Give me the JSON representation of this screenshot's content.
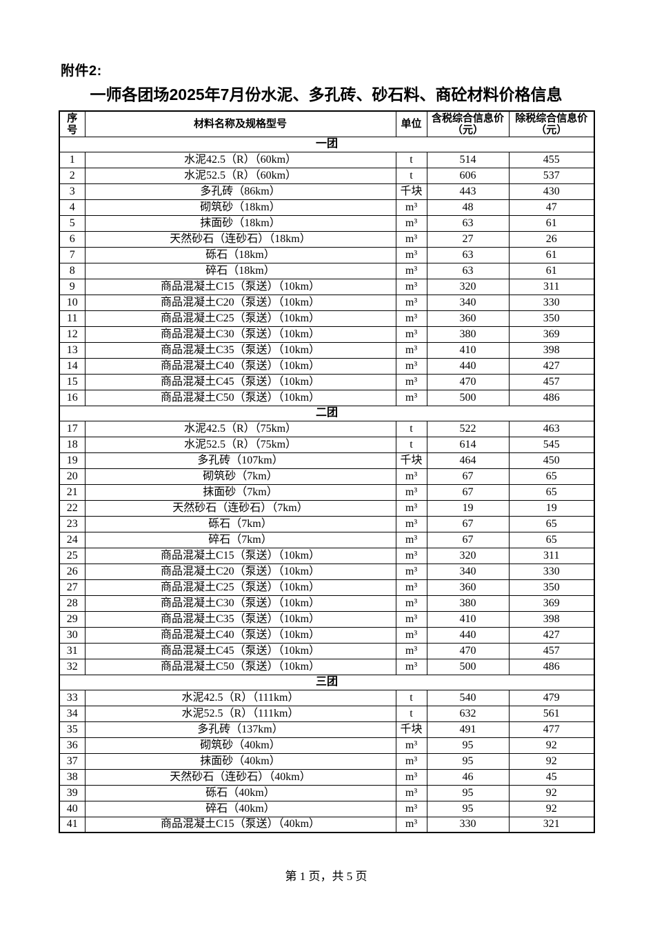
{
  "page": {
    "attachment_label": "附件2:",
    "title": "一师各团场2025年7月份水泥、多孔砖、砂石料、商砼材料价格信息",
    "footer": "第 1 页，共 5 页"
  },
  "table": {
    "headers": {
      "no": "序\n号",
      "name": "材料名称及规格型号",
      "unit": "单位",
      "tax_incl": "含税综合信息价（元）",
      "tax_excl": "除税综合信息价（元）"
    },
    "sections": [
      {
        "name": "一团",
        "rows": [
          {
            "no": "1",
            "name": "水泥42.5（R）（60km）",
            "unit": "t",
            "tax_incl": "514",
            "tax_excl": "455"
          },
          {
            "no": "2",
            "name": "水泥52.5（R）（60km）",
            "unit": "t",
            "tax_incl": "606",
            "tax_excl": "537"
          },
          {
            "no": "3",
            "name": "多孔砖（86km）",
            "unit": "千块",
            "tax_incl": "443",
            "tax_excl": "430"
          },
          {
            "no": "4",
            "name": "砌筑砂（18km）",
            "unit": "m³",
            "tax_incl": "48",
            "tax_excl": "47"
          },
          {
            "no": "5",
            "name": "抹面砂（18km）",
            "unit": "m³",
            "tax_incl": "63",
            "tax_excl": "61"
          },
          {
            "no": "6",
            "name": "天然砂石（连砂石）（18km）",
            "unit": "m³",
            "tax_incl": "27",
            "tax_excl": "26"
          },
          {
            "no": "7",
            "name": "砾石（18km）",
            "unit": "m³",
            "tax_incl": "63",
            "tax_excl": "61"
          },
          {
            "no": "8",
            "name": "碎石（18km）",
            "unit": "m³",
            "tax_incl": "63",
            "tax_excl": "61"
          },
          {
            "no": "9",
            "name": "商品混凝土C15（泵送）（10km）",
            "unit": "m³",
            "tax_incl": "320",
            "tax_excl": "311"
          },
          {
            "no": "10",
            "name": "商品混凝土C20（泵送）（10km）",
            "unit": "m³",
            "tax_incl": "340",
            "tax_excl": "330"
          },
          {
            "no": "11",
            "name": "商品混凝土C25（泵送）（10km）",
            "unit": "m³",
            "tax_incl": "360",
            "tax_excl": "350"
          },
          {
            "no": "12",
            "name": "商品混凝土C30（泵送）（10km）",
            "unit": "m³",
            "tax_incl": "380",
            "tax_excl": "369"
          },
          {
            "no": "13",
            "name": "商品混凝土C35（泵送）（10km）",
            "unit": "m³",
            "tax_incl": "410",
            "tax_excl": "398"
          },
          {
            "no": "14",
            "name": "商品混凝土C40（泵送）（10km）",
            "unit": "m³",
            "tax_incl": "440",
            "tax_excl": "427"
          },
          {
            "no": "15",
            "name": "商品混凝土C45（泵送）（10km）",
            "unit": "m³",
            "tax_incl": "470",
            "tax_excl": "457"
          },
          {
            "no": "16",
            "name": "商品混凝土C50（泵送）（10km）",
            "unit": "m³",
            "tax_incl": "500",
            "tax_excl": "486"
          }
        ]
      },
      {
        "name": "二团",
        "rows": [
          {
            "no": "17",
            "name": "水泥42.5（R）（75km）",
            "unit": "t",
            "tax_incl": "522",
            "tax_excl": "463"
          },
          {
            "no": "18",
            "name": "水泥52.5（R）（75km）",
            "unit": "t",
            "tax_incl": "614",
            "tax_excl": "545"
          },
          {
            "no": "19",
            "name": "多孔砖（107km）",
            "unit": "千块",
            "tax_incl": "464",
            "tax_excl": "450"
          },
          {
            "no": "20",
            "name": "砌筑砂（7km）",
            "unit": "m³",
            "tax_incl": "67",
            "tax_excl": "65"
          },
          {
            "no": "21",
            "name": "抹面砂（7km）",
            "unit": "m³",
            "tax_incl": "67",
            "tax_excl": "65"
          },
          {
            "no": "22",
            "name": "天然砂石（连砂石）（7km）",
            "unit": "m³",
            "tax_incl": "19",
            "tax_excl": "19"
          },
          {
            "no": "23",
            "name": "砾石（7km）",
            "unit": "m³",
            "tax_incl": "67",
            "tax_excl": "65"
          },
          {
            "no": "24",
            "name": "碎石（7km）",
            "unit": "m³",
            "tax_incl": "67",
            "tax_excl": "65"
          },
          {
            "no": "25",
            "name": "商品混凝土C15（泵送）（10km）",
            "unit": "m³",
            "tax_incl": "320",
            "tax_excl": "311"
          },
          {
            "no": "26",
            "name": "商品混凝土C20（泵送）（10km）",
            "unit": "m³",
            "tax_incl": "340",
            "tax_excl": "330"
          },
          {
            "no": "27",
            "name": "商品混凝土C25（泵送）（10km）",
            "unit": "m³",
            "tax_incl": "360",
            "tax_excl": "350"
          },
          {
            "no": "28",
            "name": "商品混凝土C30（泵送）（10km）",
            "unit": "m³",
            "tax_incl": "380",
            "tax_excl": "369"
          },
          {
            "no": "29",
            "name": "商品混凝土C35（泵送）（10km）",
            "unit": "m³",
            "tax_incl": "410",
            "tax_excl": "398"
          },
          {
            "no": "30",
            "name": "商品混凝土C40（泵送）（10km）",
            "unit": "m³",
            "tax_incl": "440",
            "tax_excl": "427"
          },
          {
            "no": "31",
            "name": "商品混凝土C45（泵送）（10km）",
            "unit": "m³",
            "tax_incl": "470",
            "tax_excl": "457"
          },
          {
            "no": "32",
            "name": "商品混凝土C50（泵送）（10km）",
            "unit": "m³",
            "tax_incl": "500",
            "tax_excl": "486"
          }
        ]
      },
      {
        "name": "三团",
        "rows": [
          {
            "no": "33",
            "name": "水泥42.5（R）（111km）",
            "unit": "t",
            "tax_incl": "540",
            "tax_excl": "479"
          },
          {
            "no": "34",
            "name": "水泥52.5（R）（111km）",
            "unit": "t",
            "tax_incl": "632",
            "tax_excl": "561"
          },
          {
            "no": "35",
            "name": "多孔砖（137km）",
            "unit": "千块",
            "tax_incl": "491",
            "tax_excl": "477"
          },
          {
            "no": "36",
            "name": "砌筑砂（40km）",
            "unit": "m³",
            "tax_incl": "95",
            "tax_excl": "92"
          },
          {
            "no": "37",
            "name": "抹面砂（40km）",
            "unit": "m³",
            "tax_incl": "95",
            "tax_excl": "92"
          },
          {
            "no": "38",
            "name": "天然砂石（连砂石）（40km）",
            "unit": "m³",
            "tax_incl": "46",
            "tax_excl": "45"
          },
          {
            "no": "39",
            "name": "砾石（40km）",
            "unit": "m³",
            "tax_incl": "95",
            "tax_excl": "92"
          },
          {
            "no": "40",
            "name": "碎石（40km）",
            "unit": "m³",
            "tax_incl": "95",
            "tax_excl": "92"
          },
          {
            "no": "41",
            "name": "商品混凝土C15（泵送）（40km）",
            "unit": "m³",
            "tax_incl": "330",
            "tax_excl": "321"
          }
        ]
      }
    ]
  }
}
